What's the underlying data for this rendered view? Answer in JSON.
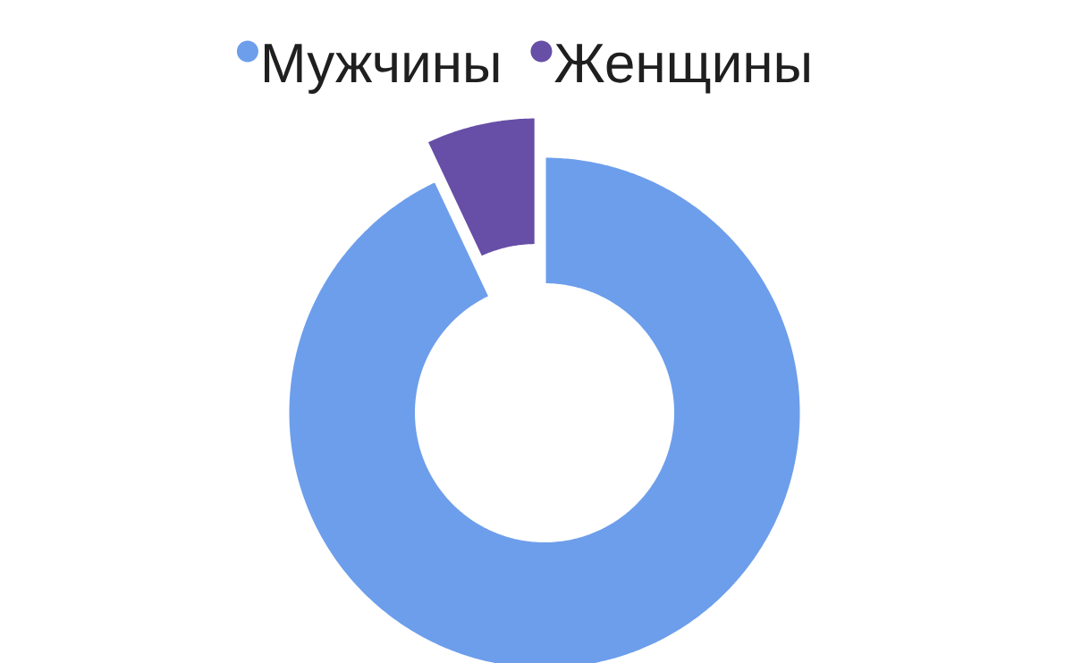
{
  "chart_data": {
    "type": "donut",
    "categories": [
      "Мужчины",
      "Женщины"
    ],
    "values": [
      93,
      7
    ],
    "colors": [
      "#6d9eeb",
      "#674ea7"
    ],
    "legend": "top"
  }
}
